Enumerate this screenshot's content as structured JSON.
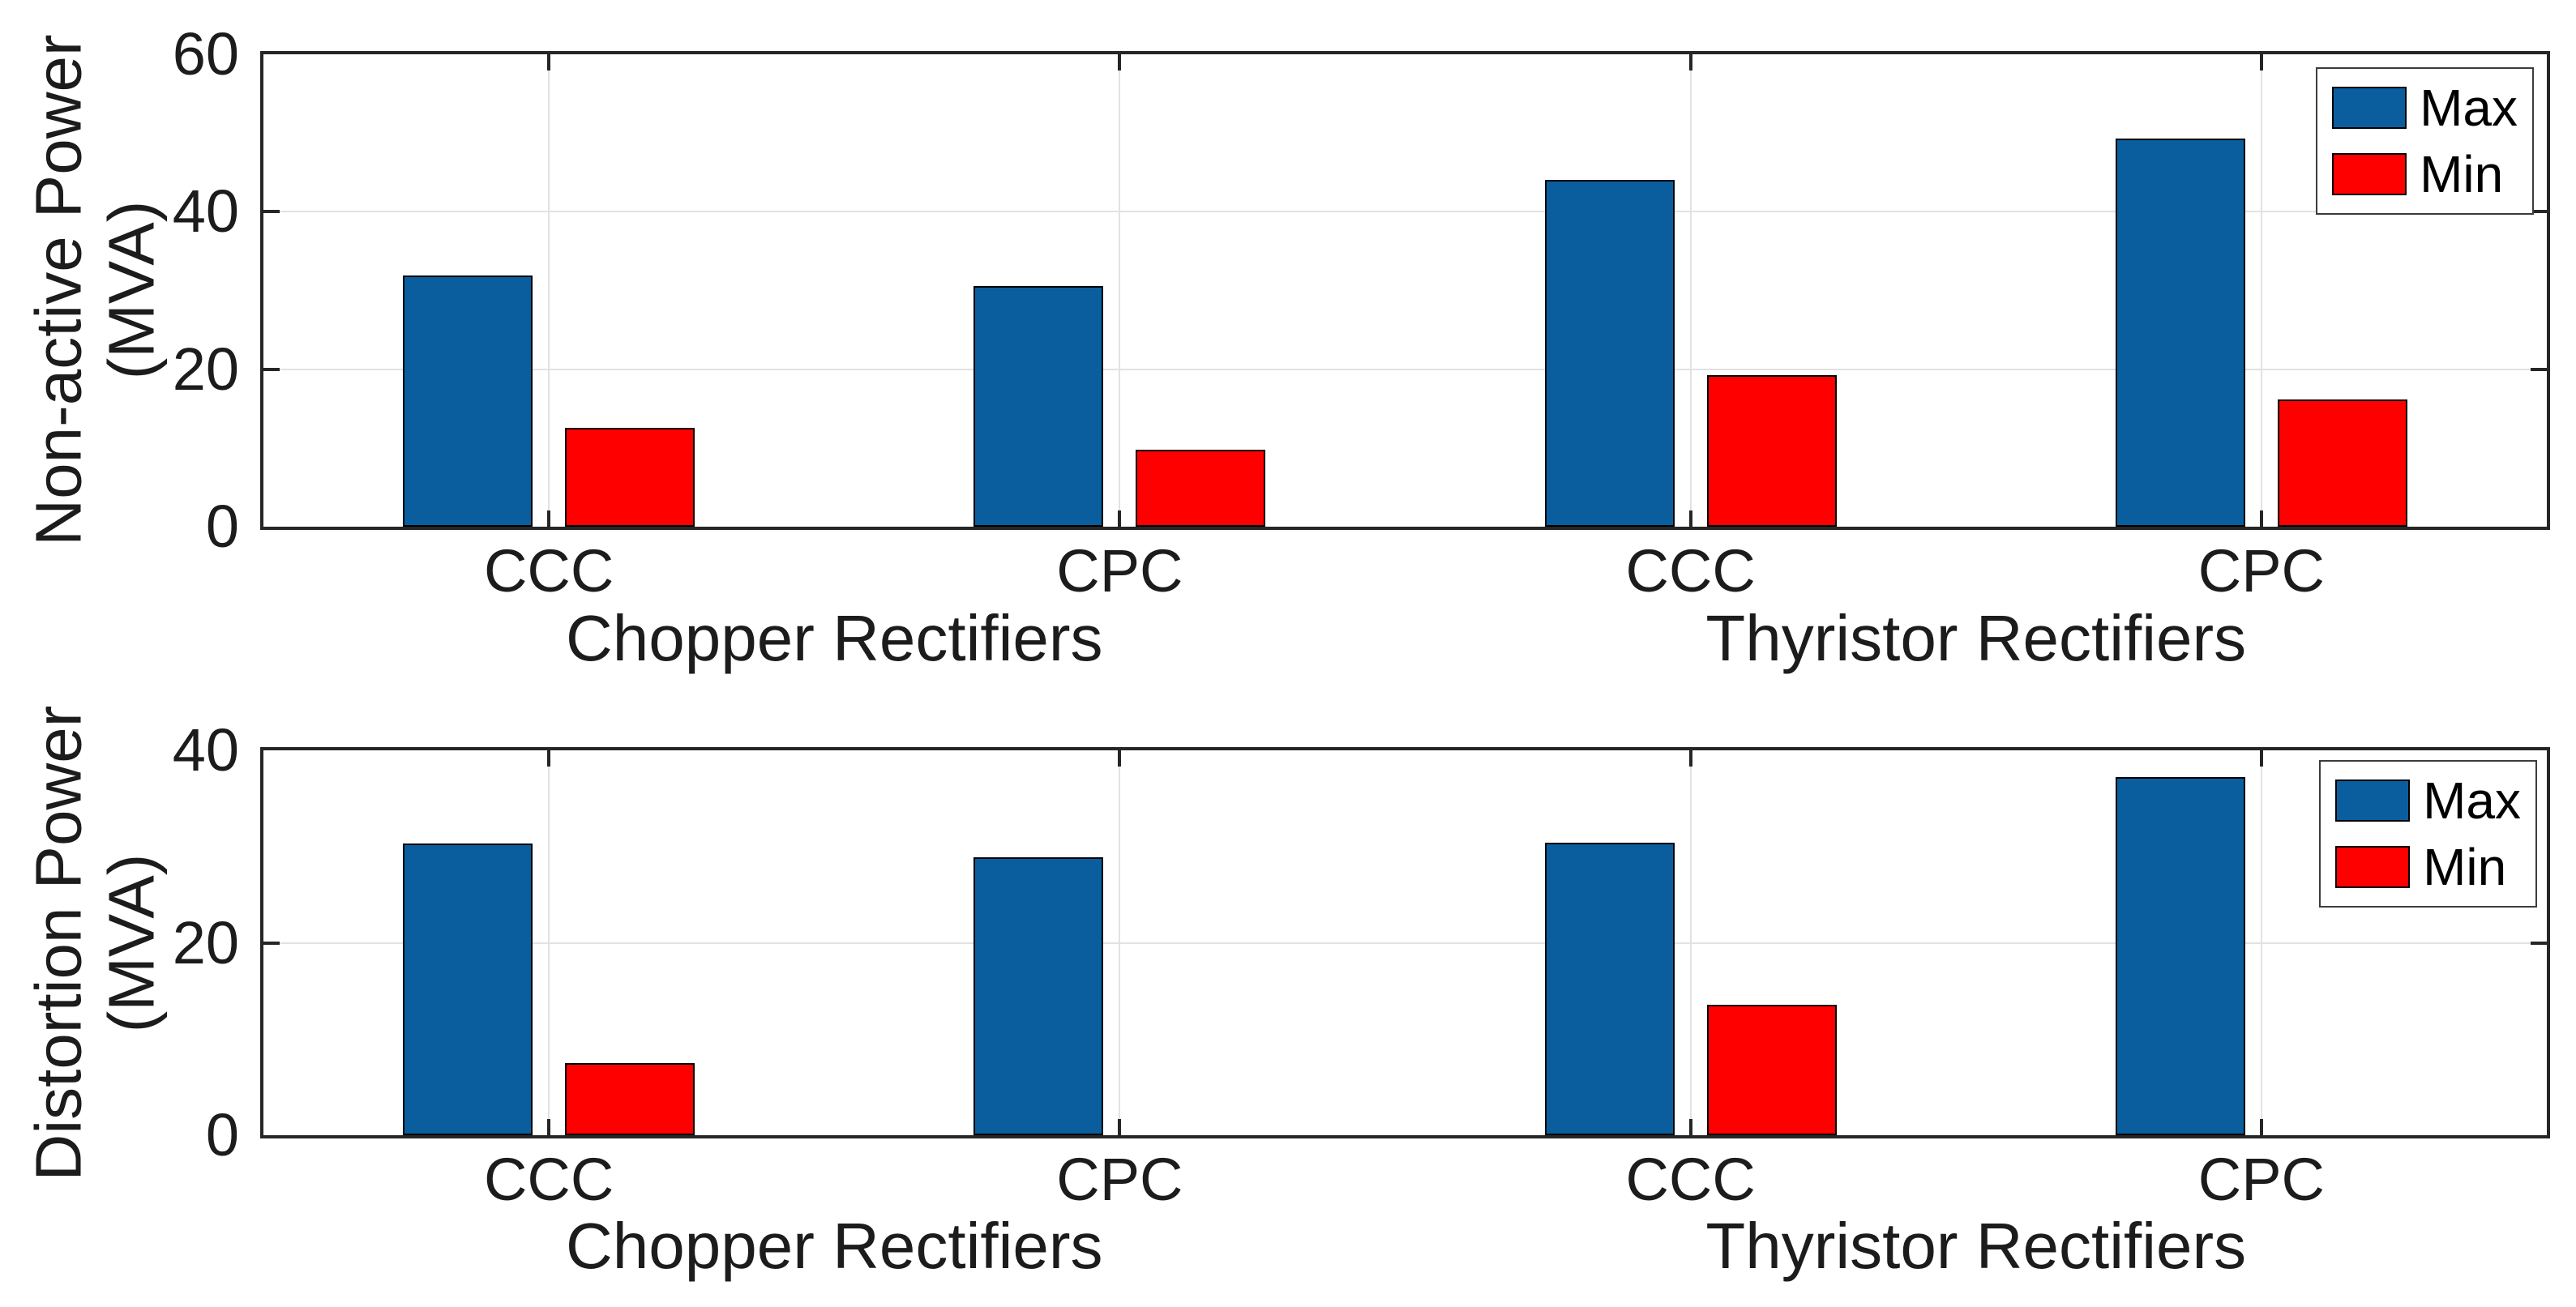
{
  "colors": {
    "max": "#0B5E9D",
    "min": "#FF0000",
    "axis": "#262626",
    "grid": "#E2E2E2",
    "text": "#1C1C1C",
    "background": "#FFFFFF"
  },
  "legend": {
    "items": [
      {
        "label": "Max",
        "color_key": "max"
      },
      {
        "label": "Min",
        "color_key": "min"
      }
    ],
    "position": "top-right"
  },
  "chart_data": [
    {
      "type": "bar",
      "title": "",
      "ylabel": "Non-active Power (MVA)",
      "ylabel_lines": [
        "Non-active Power",
        "(MVA)"
      ],
      "xlabel": "",
      "categories": [
        "CCC",
        "CPC",
        "CCC",
        "CPC"
      ],
      "group_labels": [
        "Chopper Rectifiers",
        "Thyristor Rectifiers"
      ],
      "series": [
        {
          "name": "Max",
          "values": [
            31.9,
            30.6,
            44.0,
            49.3
          ]
        },
        {
          "name": "Min",
          "values": [
            12.6,
            9.8,
            19.2,
            16.2
          ]
        }
      ],
      "ylim": [
        0,
        60
      ],
      "yticks": [
        0,
        20,
        40,
        60
      ],
      "grid": true,
      "legend_position": "top-right"
    },
    {
      "type": "bar",
      "title": "",
      "ylabel": "Distortion Power (MVA)",
      "ylabel_lines": [
        "Distortion Power",
        "(MVA)"
      ],
      "xlabel": "",
      "categories": [
        "CCC",
        "CPC",
        "CCC",
        "CPC"
      ],
      "group_labels": [
        "Chopper Rectifiers",
        "Thyristor Rectifiers"
      ],
      "series": [
        {
          "name": "Max",
          "values": [
            30.3,
            28.9,
            30.4,
            37.2
          ]
        },
        {
          "name": "Min",
          "values": [
            7.5,
            0,
            13.6,
            0
          ]
        }
      ],
      "ylim": [
        0,
        40
      ],
      "yticks": [
        0,
        20,
        40
      ],
      "grid": true,
      "legend_position": "top-right"
    }
  ]
}
